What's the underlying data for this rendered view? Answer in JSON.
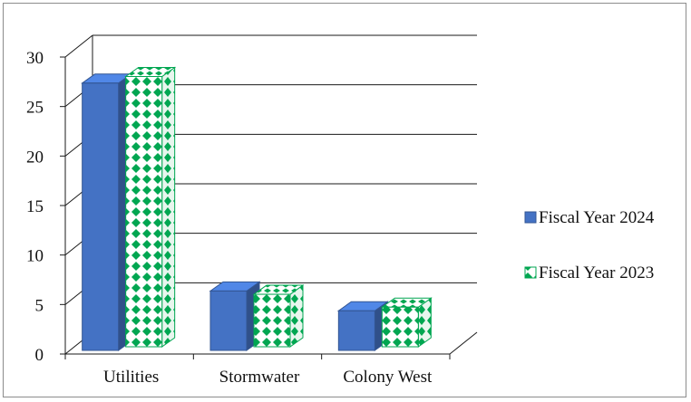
{
  "chart_data": {
    "type": "bar",
    "style": "3d-clustered-column",
    "title": "",
    "xlabel": "",
    "ylabel": "",
    "categories": [
      "Utilities",
      "Stormwater",
      "Colony West"
    ],
    "series": [
      {
        "name": "Fiscal Year 2024",
        "values": [
          27,
          6,
          4
        ],
        "color": "#4472c4",
        "pattern": "solid"
      },
      {
        "name": "Fiscal Year 2023",
        "values": [
          27.3,
          5.3,
          4
        ],
        "color": "#00b050",
        "pattern": "diamond"
      }
    ],
    "ylim": [
      0,
      30
    ],
    "yticks": [
      "0",
      "5",
      "10",
      "15",
      "20",
      "25",
      "30"
    ],
    "grid": true,
    "legend": "right"
  }
}
